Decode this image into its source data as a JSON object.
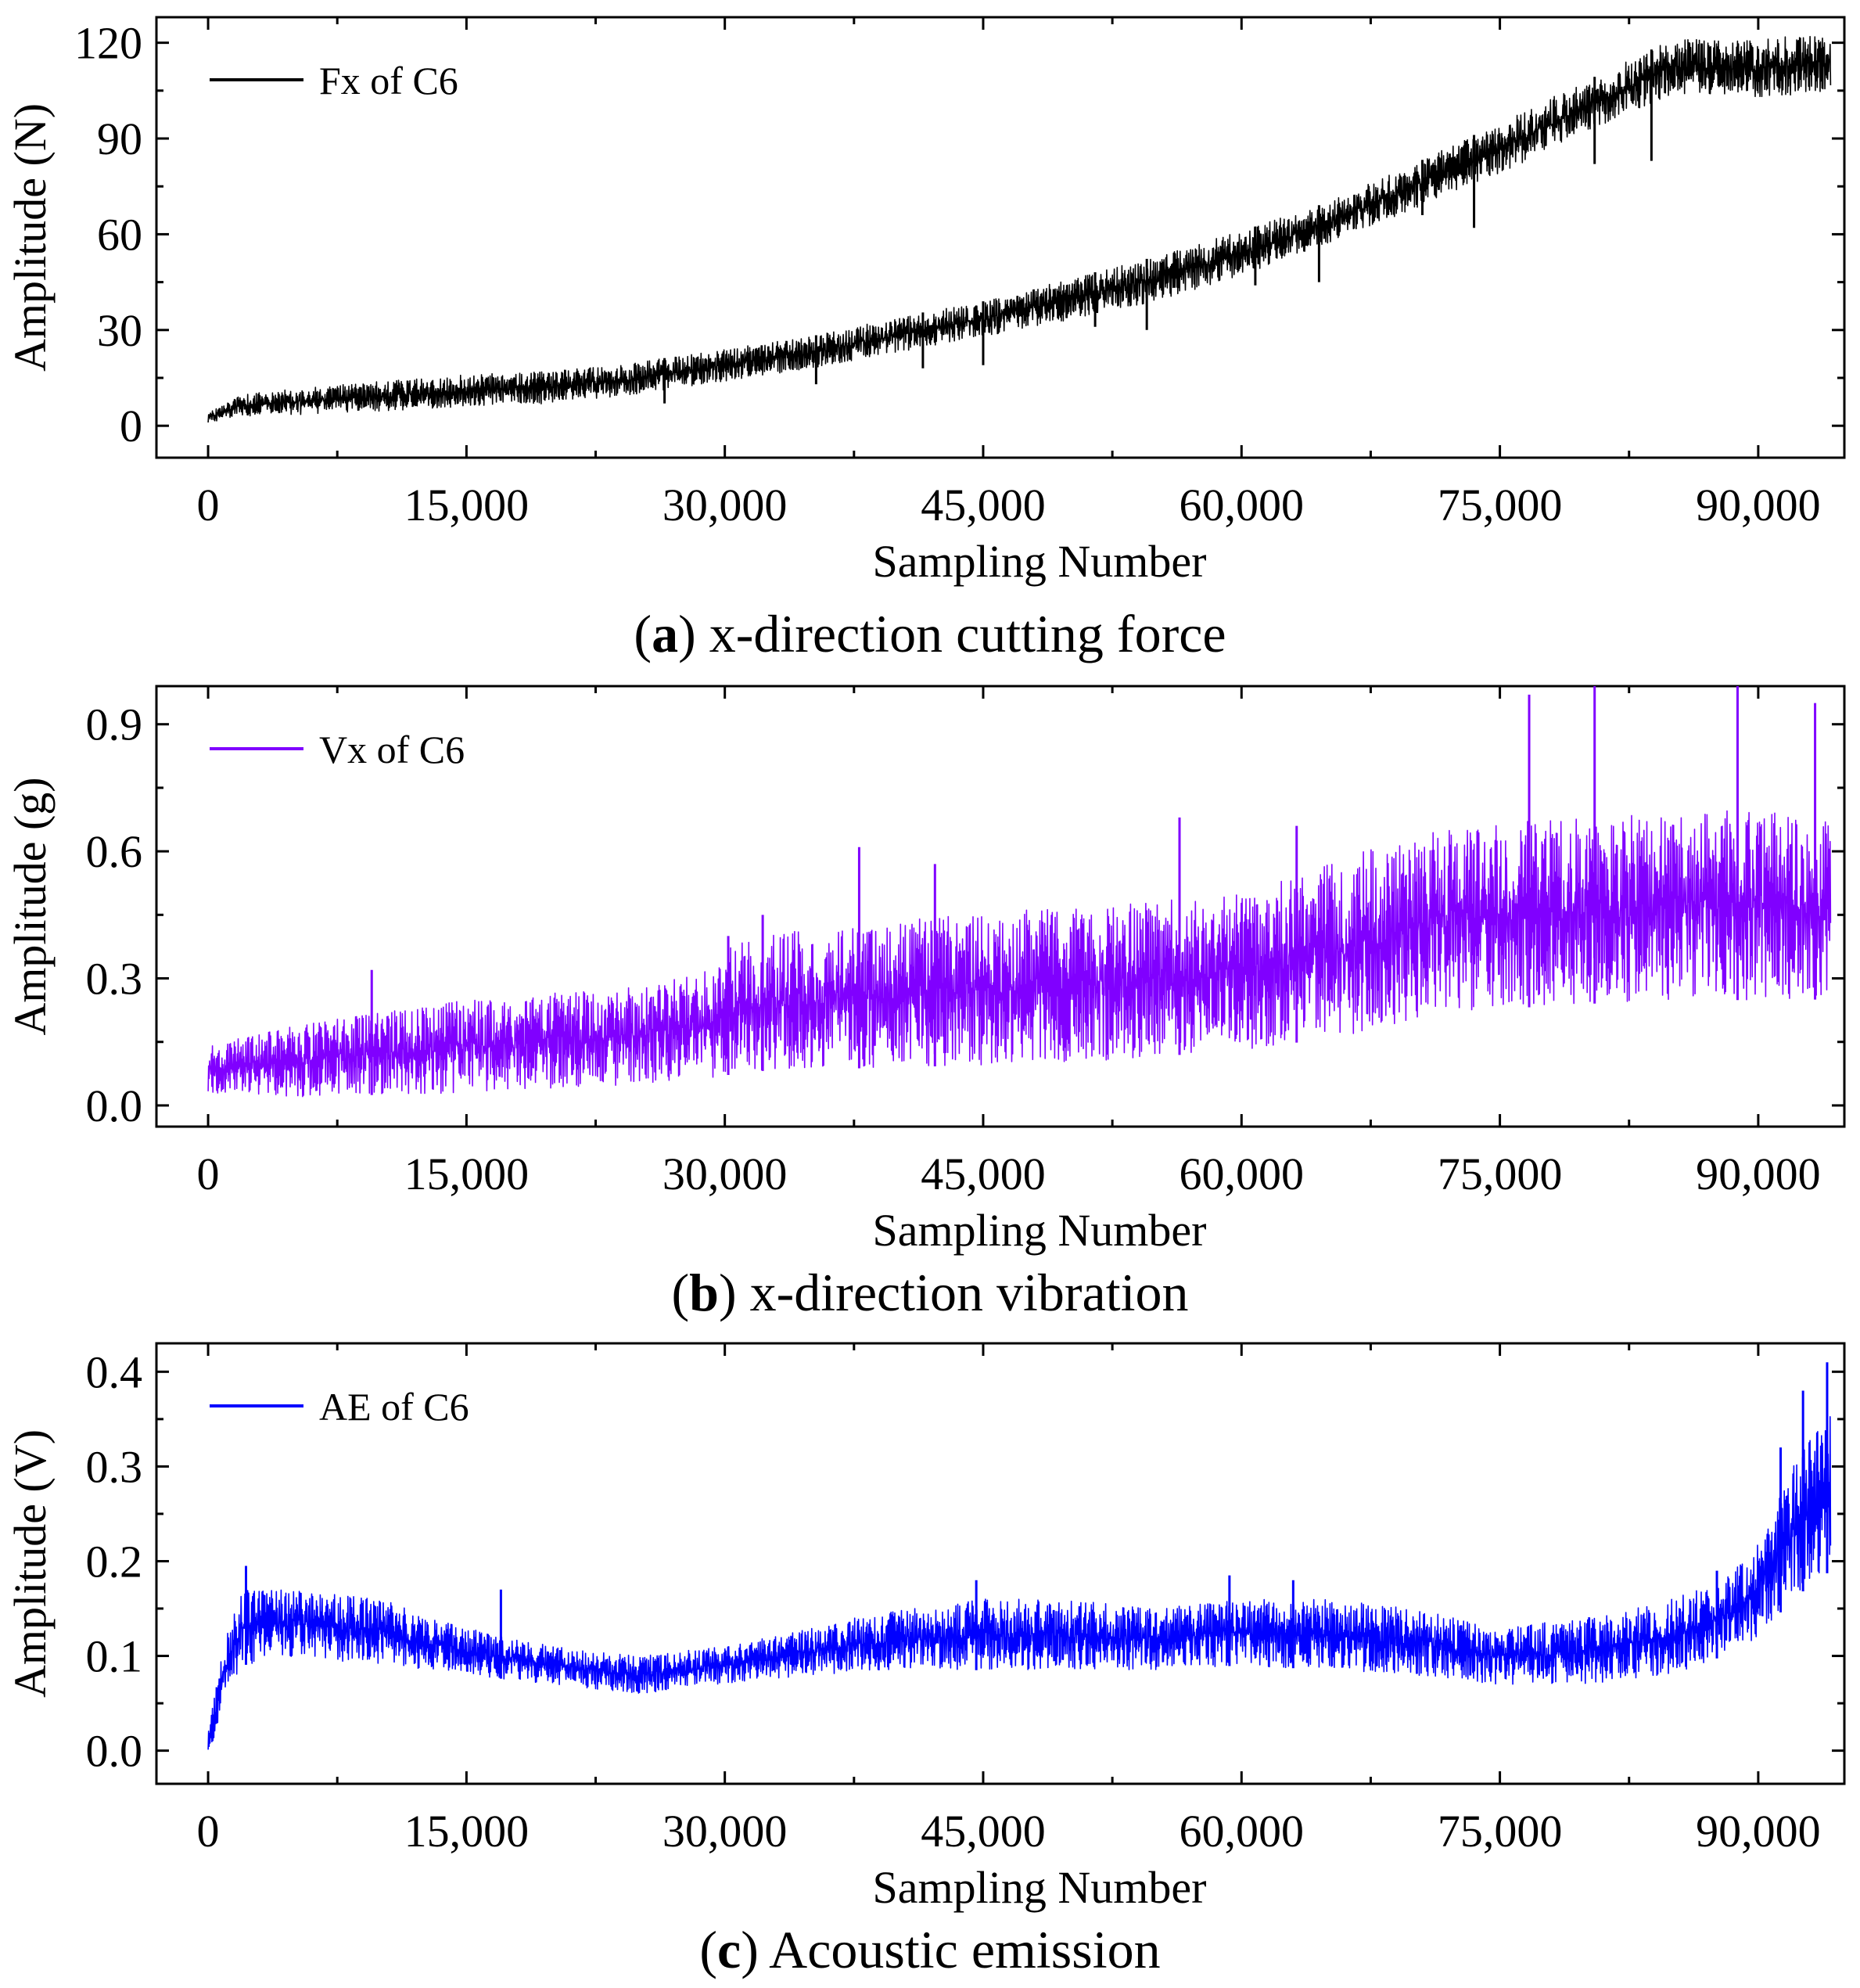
{
  "chart_data": [
    {
      "type": "line",
      "panel": "a",
      "caption_letter": "a",
      "caption_text": "x-direction cutting force",
      "xlabel": "Sampling Number",
      "ylabel": "Amplitude (N)",
      "xlim": [
        -3000,
        95000
      ],
      "ylim": [
        -10,
        128
      ],
      "xticks": [
        0,
        15000,
        30000,
        45000,
        60000,
        75000,
        90000
      ],
      "xtick_labels": [
        "0",
        "15,000",
        "30,000",
        "45,000",
        "60,000",
        "75,000",
        "90,000"
      ],
      "yticks": [
        0,
        30,
        60,
        90,
        120
      ],
      "ytick_labels": [
        "0",
        "30",
        "60",
        "90",
        "120"
      ],
      "legend": "top-left",
      "grid": false,
      "series": [
        {
          "name": "Fx of C6",
          "color": "#000000",
          "envelope": {
            "x": [
              0,
              2000,
              8000,
              15000,
              20000,
              25000,
              30000,
              35000,
              40000,
              45000,
              50000,
              55000,
              60000,
              65000,
              70000,
              75000,
              80000,
              85000,
              88000,
              90000,
              94200
            ],
            "lower": [
              1,
              3,
              4,
              6,
              7,
              10,
              14,
              18,
              23,
              28,
              33,
              39,
              47,
              57,
              68,
              79,
              92,
              104,
              104,
              103,
              104
            ],
            "upper": [
              4,
              10,
              13,
              16,
              17,
              20,
              24,
              28,
              34,
              39,
              46,
              53,
              61,
              70,
              82,
              95,
              108,
              121,
              121,
              121,
              124
            ]
          },
          "dips": [
            [
              26500,
              7
            ],
            [
              35300,
              13
            ],
            [
              41500,
              18
            ],
            [
              45000,
              19
            ],
            [
              51500,
              31
            ],
            [
              54500,
              30
            ],
            [
              60800,
              44
            ],
            [
              64500,
              45
            ],
            [
              70500,
              66
            ],
            [
              73500,
              62
            ],
            [
              80500,
              82
            ],
            [
              83800,
              83
            ]
          ]
        }
      ]
    },
    {
      "type": "line",
      "panel": "b",
      "caption_letter": "b",
      "caption_text": "x-direction vibration",
      "xlabel": "Sampling Number",
      "ylabel": "Amplitude (g)",
      "xlim": [
        -3000,
        95000
      ],
      "ylim": [
        -0.05,
        0.99
      ],
      "xticks": [
        0,
        15000,
        30000,
        45000,
        60000,
        75000,
        90000
      ],
      "xtick_labels": [
        "0",
        "15,000",
        "30,000",
        "45,000",
        "60,000",
        "75,000",
        "90,000"
      ],
      "yticks": [
        0.0,
        0.3,
        0.6,
        0.9
      ],
      "ytick_labels": [
        "0.0",
        "0.3",
        "0.6",
        "0.9"
      ],
      "legend": "top-left",
      "grid": false,
      "series": [
        {
          "name": "Vx of C6",
          "color": "#8000ff",
          "envelope": {
            "x": [
              0,
              5000,
              15000,
              25000,
              29000,
              31000,
              40000,
              50000,
              60000,
              67000,
              72000,
              80000,
              90000,
              94200
            ],
            "lower": [
              0.03,
              0.02,
              0.03,
              0.05,
              0.06,
              0.08,
              0.09,
              0.1,
              0.13,
              0.17,
              0.22,
              0.24,
              0.25,
              0.25
            ],
            "upper": [
              0.14,
              0.19,
              0.25,
              0.28,
              0.32,
              0.4,
              0.44,
              0.47,
              0.5,
              0.6,
              0.66,
              0.68,
              0.7,
              0.68
            ]
          },
          "peaks": [
            [
              9500,
              0.32
            ],
            [
              30200,
              0.4
            ],
            [
              32200,
              0.45
            ],
            [
              37800,
              0.61
            ],
            [
              42200,
              0.57
            ],
            [
              56400,
              0.68
            ],
            [
              63200,
              0.66
            ],
            [
              76700,
              0.97
            ],
            [
              80500,
              0.99
            ],
            [
              88800,
              0.99
            ],
            [
              93300,
              0.95
            ]
          ]
        }
      ]
    },
    {
      "type": "line",
      "panel": "c",
      "caption_letter": "c",
      "caption_text": "Acoustic emission",
      "xlabel": "Sampling Number",
      "ylabel": "Amplitude (V)",
      "xlim": [
        -3000,
        95000
      ],
      "ylim": [
        -0.035,
        0.43
      ],
      "xticks": [
        0,
        15000,
        30000,
        45000,
        60000,
        75000,
        90000
      ],
      "xtick_labels": [
        "0",
        "15,000",
        "30,000",
        "45,000",
        "60,000",
        "75,000",
        "90,000"
      ],
      "yticks": [
        0.0,
        0.1,
        0.2,
        0.3,
        0.4
      ],
      "ytick_labels": [
        "0.0",
        "0.1",
        "0.2",
        "0.3",
        "0.4"
      ],
      "legend": "top-left",
      "grid": false,
      "series": [
        {
          "name": "AE of C6",
          "color": "#0000ff",
          "envelope": {
            "x": [
              0,
              300,
              1000,
              2000,
              5000,
              10000,
              15000,
              20000,
              25000,
              30000,
              35000,
              40000,
              45000,
              50000,
              55000,
              60000,
              65000,
              70000,
              75000,
              80000,
              85000,
              88000,
              90000,
              92000,
              94200
            ],
            "lower": [
              0.0,
              0.01,
              0.06,
              0.09,
              0.1,
              0.09,
              0.08,
              0.07,
              0.06,
              0.07,
              0.08,
              0.085,
              0.085,
              0.085,
              0.085,
              0.09,
              0.085,
              0.08,
              0.07,
              0.07,
              0.08,
              0.1,
              0.12,
              0.16,
              0.19
            ],
            "upper": [
              0.02,
              0.05,
              0.12,
              0.17,
              0.17,
              0.16,
              0.13,
              0.11,
              0.1,
              0.11,
              0.13,
              0.15,
              0.16,
              0.16,
              0.15,
              0.16,
              0.16,
              0.15,
              0.13,
              0.14,
              0.16,
              0.18,
              0.22,
              0.3,
              0.36
            ]
          },
          "peaks": [
            [
              2200,
              0.195
            ],
            [
              17000,
              0.17
            ],
            [
              44600,
              0.18
            ],
            [
              59300,
              0.185
            ],
            [
              63000,
              0.18
            ],
            [
              87600,
              0.19
            ],
            [
              91300,
              0.32
            ],
            [
              92600,
              0.38
            ],
            [
              94000,
              0.41
            ]
          ]
        }
      ]
    }
  ]
}
